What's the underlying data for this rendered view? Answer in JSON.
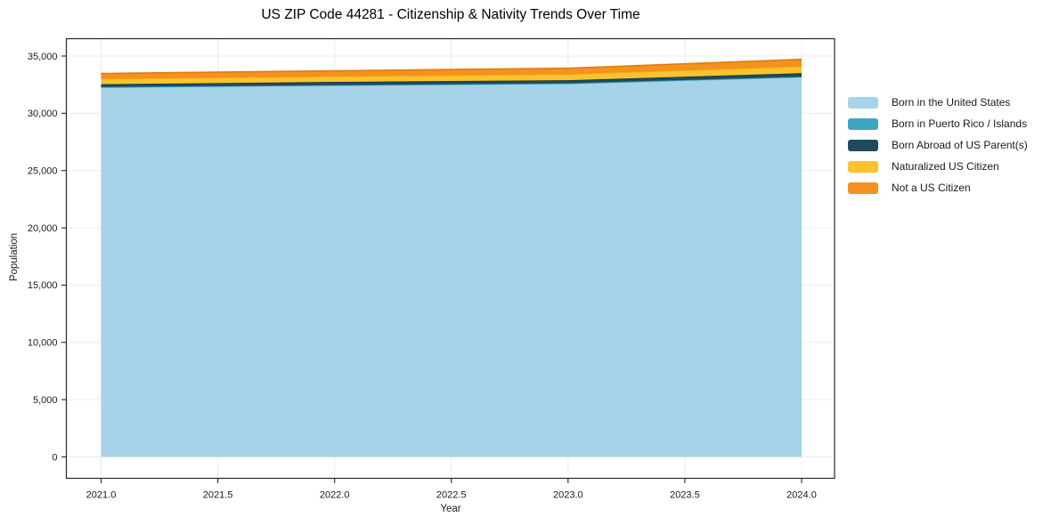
{
  "chart_data": {
    "type": "area",
    "stacked": true,
    "title": "US ZIP Code 44281 - Citizenship & Nativity Trends Over Time",
    "xlabel": "Year",
    "ylabel": "Population",
    "x": [
      2021,
      2022,
      2023,
      2024
    ],
    "series": [
      {
        "name": "Born in the United States",
        "color": "#a7d3e8",
        "edge": "#8ec4dd",
        "values": [
          32260,
          32420,
          32580,
          33150
        ]
      },
      {
        "name": "Born in Puerto Rico / Islands",
        "color": "#3da6c4",
        "edge": "#2f93b4",
        "values": [
          40,
          45,
          45,
          50
        ]
      },
      {
        "name": "Born Abroad of US Parent(s)",
        "color": "#1f4a5c",
        "edge": "#16394a",
        "values": [
          240,
          280,
          270,
          310
        ]
      },
      {
        "name": "Naturalized US Citizen",
        "color": "#fdc32e",
        "edge": "#edb014",
        "values": [
          470,
          475,
          520,
          580
        ]
      },
      {
        "name": "Not a US Citizen",
        "color": "#f5911e",
        "edge": "#e07c0e",
        "values": [
          470,
          490,
          525,
          625
        ]
      }
    ],
    "xtick_values": [
      2021.0,
      2021.5,
      2022.0,
      2022.5,
      2023.0,
      2023.5,
      2024.0
    ],
    "xtick_labels": [
      "2021.0",
      "2021.5",
      "2022.0",
      "2022.5",
      "2023.0",
      "2023.5",
      "2024.0"
    ],
    "ytick_values": [
      0,
      5000,
      10000,
      15000,
      20000,
      25000,
      30000,
      35000
    ],
    "ytick_labels": [
      "0",
      "5,000",
      "10,000",
      "15,000",
      "20,000",
      "25,000",
      "30,000",
      "35,000"
    ],
    "xlim": [
      2020.85,
      2024.15
    ],
    "ylim": [
      -1800,
      36500
    ],
    "grid": true,
    "legend_position": "right",
    "grid_color": "#ececec",
    "axis_color": "#262626",
    "text_color": "#1a1a1a"
  }
}
